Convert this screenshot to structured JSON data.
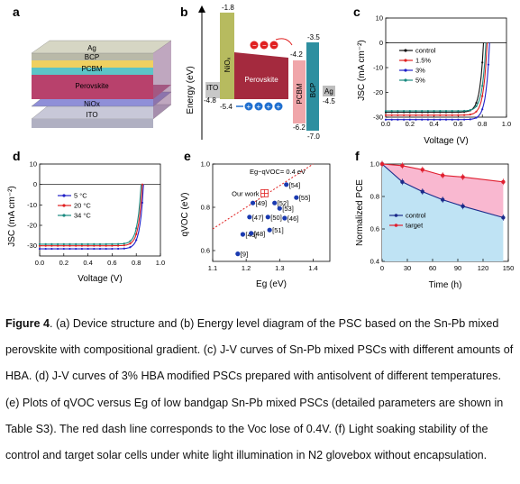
{
  "panels": {
    "a": {
      "label": "a",
      "layers": [
        "Ag",
        "BCP",
        "PCBM",
        "Perovskite",
        "NiOx",
        "ITO"
      ],
      "layer_colors": [
        "#b9b9a8",
        "#f0d060",
        "#5cc4c7",
        "#b8416c",
        "#8f8fd8",
        "#c8c8d8"
      ]
    },
    "b": {
      "label": "b",
      "ylabel": "Energy (eV)",
      "levels": [
        {
          "name": "ITO",
          "top": "-4.8",
          "color": "#c8c8c8"
        },
        {
          "name": "NiOx",
          "top": "-1.8",
          "bottom": "-5.4",
          "color": "#b7bb5f"
        },
        {
          "name": "Perovskite",
          "top": "-4.2",
          "color": "#a42a3e"
        },
        {
          "name": "PCBM",
          "bottom": "-6.2",
          "color": "#f0a6aa"
        },
        {
          "name": "BCP",
          "top": "-3.5",
          "bottom": "-7.0",
          "color": "#2e8fa0"
        },
        {
          "name": "Ag",
          "top": "-4.5",
          "color": "#bdbdbd"
        }
      ],
      "ito_label": "ITO",
      "nio_label": "NiOₓ",
      "pvk_label": "Perovskite",
      "pcbm_label": "PCBM",
      "bcp_label": "BCP",
      "ag_label": "Ag",
      "v_n18": "-1.8",
      "v_n35": "-3.5",
      "v_n42": "-4.2",
      "v_n45": "-4.5",
      "v_n48": "-4.8",
      "v_n54": "-5.4",
      "v_n62": "-6.2",
      "v_n70": "-7.0"
    },
    "caption": {
      "fig_label": "Figure 4",
      "text": ". (a) Device structure and (b) Energy level diagram of the PSC based on the Sn-Pb mixed perovskite with compositional gradient. (c) J-V curves of Sn-Pb mixed PSCs with different amounts of HBA. (d) J-V curves of 3% HBA modified PSCs prepared with antisolvent of different temperatures. (e) Plots of qVOC versus Eg of low bandgap Sn-Pb mixed PSCs (detailed parameters are shown in Table S3). The red dash line corresponds to the Voc lose of 0.4V. (f) Light soaking stability of the control and target solar cells under white light illumination in N2 glovebox without encapsulation."
    }
  },
  "chart_data": [
    {
      "panel": "c",
      "type": "line",
      "xlabel": "Voltage (V)",
      "ylabel": "JSC (mA cm⁻²)",
      "xlim": [
        0,
        1.0
      ],
      "ylim": [
        -30,
        10
      ],
      "xticks": [
        "0.0",
        "0.2",
        "0.4",
        "0.6",
        "0.8",
        "1.0"
      ],
      "yticks": [
        "10",
        "0",
        "-10",
        "-20",
        "-30"
      ],
      "legend": "right",
      "series": [
        {
          "name": "control",
          "color": "#111111",
          "jsc": -28.0,
          "voc": 0.81
        },
        {
          "name": "1.5%",
          "color": "#e02020",
          "jsc": -29.2,
          "voc": 0.84
        },
        {
          "name": "3%",
          "color": "#2020c8",
          "jsc": -31.0,
          "voc": 0.86
        },
        {
          "name": "5%",
          "color": "#1a8a80",
          "jsc": -27.5,
          "voc": 0.83
        }
      ]
    },
    {
      "panel": "d",
      "type": "line",
      "xlabel": "Voltage (V)",
      "ylabel": "JSC (mA cm⁻²)",
      "xlim": [
        0,
        1.0
      ],
      "ylim": [
        -35,
        10
      ],
      "xticks": [
        "0.0",
        "0.2",
        "0.4",
        "0.6",
        "0.8",
        "1.0"
      ],
      "yticks": [
        "10",
        "0",
        "-10",
        "-20",
        "-30"
      ],
      "legend": "left",
      "series": [
        {
          "name": "5 °C",
          "color": "#2020c8",
          "jsc": -31.5,
          "voc": 0.86
        },
        {
          "name": "20 °C",
          "color": "#e02020",
          "jsc": -30.0,
          "voc": 0.85
        },
        {
          "name": "34 °C",
          "color": "#1a8a80",
          "jsc": -29.2,
          "voc": 0.84
        }
      ]
    },
    {
      "panel": "e",
      "type": "scatter",
      "xlabel": "Eg (eV)",
      "ylabel": "qVOC (eV)",
      "xlim": [
        1.1,
        1.45
      ],
      "ylim": [
        0.55,
        1.0
      ],
      "xticks": [
        "1.1",
        "1.2",
        "1.3",
        "1.4"
      ],
      "yticks": [
        "0.6",
        "0.8",
        "1.0"
      ],
      "line_label": "Eg−qVOC= 0.4 eV",
      "ourwork_label": "Our work",
      "ourwork": {
        "x": 1.255,
        "y": 0.865
      },
      "points": [
        {
          "label": "[54]",
          "x": 1.32,
          "y": 0.905
        },
        {
          "label": "[55]",
          "x": 1.35,
          "y": 0.845
        },
        {
          "label": "[49]",
          "x": 1.22,
          "y": 0.82
        },
        {
          "label": "[52]",
          "x": 1.285,
          "y": 0.82
        },
        {
          "label": "[53]",
          "x": 1.3,
          "y": 0.795
        },
        {
          "label": "[47]",
          "x": 1.21,
          "y": 0.755
        },
        {
          "label": "[50]",
          "x": 1.265,
          "y": 0.755
        },
        {
          "label": "[46]",
          "x": 1.315,
          "y": 0.75
        },
        {
          "label": "[51]",
          "x": 1.27,
          "y": 0.695
        },
        {
          "label": "[46]",
          "x": 1.19,
          "y": 0.675
        },
        {
          "label": "[48]",
          "x": 1.215,
          "y": 0.68
        },
        {
          "label": "[9]",
          "x": 1.175,
          "y": 0.585
        }
      ]
    },
    {
      "panel": "f",
      "type": "line",
      "xlabel": "Time (h)",
      "ylabel": "Normalized PCE",
      "xlim": [
        0,
        150
      ],
      "ylim": [
        0.4,
        1.0
      ],
      "xticks": [
        "0",
        "30",
        "60",
        "90",
        "120",
        "150"
      ],
      "yticks": [
        "0.4",
        "0.6",
        "0.8",
        "1.0"
      ],
      "legend": "left",
      "x": [
        0,
        24,
        48,
        72,
        96,
        144
      ],
      "series": [
        {
          "name": "control",
          "color": "#1a2a8a",
          "values": [
            1.0,
            0.89,
            0.83,
            0.78,
            0.74,
            0.67
          ]
        },
        {
          "name": "target",
          "color": "#e02030",
          "values": [
            1.0,
            0.99,
            0.965,
            0.93,
            0.92,
            0.89
          ]
        }
      ]
    }
  ]
}
